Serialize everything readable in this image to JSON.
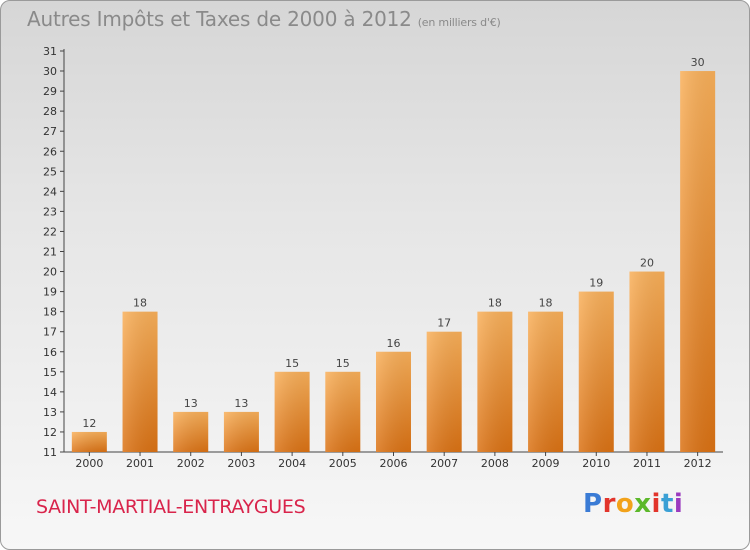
{
  "title": "Autres Impôts et Taxes de 2000 à 2012",
  "unit": "(en milliers d'€)",
  "commune": "SAINT-MARTIAL-ENTRAYGUES",
  "logo": "Proxiti",
  "colors": {
    "bar_light": "#f7a94f",
    "bar_dark": "#e07a18",
    "title": "#8a8a8a",
    "commune": "#d9244b"
  },
  "chart_data": {
    "type": "bar",
    "categories": [
      "2000",
      "2001",
      "2002",
      "2003",
      "2004",
      "2005",
      "2006",
      "2007",
      "2008",
      "2009",
      "2010",
      "2011",
      "2012"
    ],
    "values": [
      12,
      18,
      13,
      13,
      15,
      15,
      16,
      17,
      18,
      18,
      19,
      20,
      30
    ],
    "ylim": [
      11,
      31
    ],
    "yticks": [
      11,
      12,
      13,
      14,
      15,
      16,
      17,
      18,
      19,
      20,
      21,
      22,
      23,
      24,
      25,
      26,
      27,
      28,
      29,
      30,
      31
    ],
    "grid": false
  }
}
